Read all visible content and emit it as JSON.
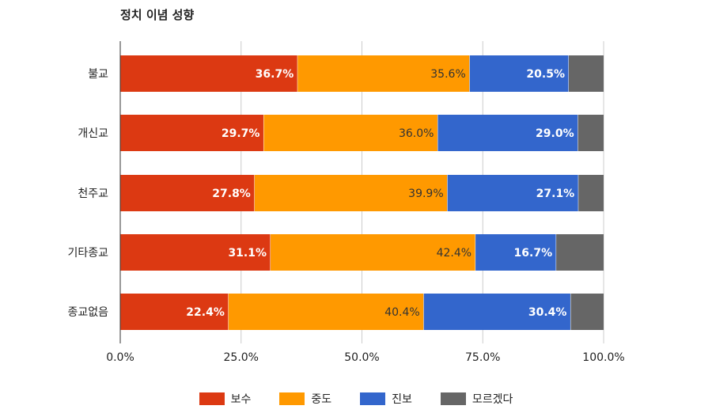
{
  "chart_data": {
    "type": "bar",
    "orientation": "horizontal",
    "stacked": true,
    "title": "정치 이념 성향",
    "categories": [
      "불교",
      "개신교",
      "천주교",
      "기타종교",
      "종교없음"
    ],
    "series": [
      {
        "name": "보수",
        "color": "#dc3912",
        "values": [
          36.7,
          29.7,
          27.8,
          31.1,
          22.4
        ]
      },
      {
        "name": "중도",
        "color": "#ff9900",
        "values": [
          35.6,
          36.0,
          39.9,
          42.4,
          40.4
        ]
      },
      {
        "name": "진보",
        "color": "#3366cc",
        "values": [
          20.5,
          29.0,
          27.1,
          16.7,
          30.4
        ]
      },
      {
        "name": "모르겠다",
        "color": "#666666",
        "values": [
          7.2,
          5.3,
          5.2,
          9.8,
          6.8
        ]
      }
    ],
    "label_text_colors": [
      "#ffffff",
      "#333333",
      "#ffffff",
      "#ffffff"
    ],
    "show_labels": [
      true,
      true,
      true,
      false
    ],
    "xlim": [
      0,
      100
    ],
    "xticks": [
      0,
      25,
      50,
      75,
      100
    ],
    "xtick_labels": [
      "0.0%",
      "25.0%",
      "50.0%",
      "75.0%",
      "100.0%"
    ],
    "grid": true,
    "legend_position": "bottom"
  }
}
